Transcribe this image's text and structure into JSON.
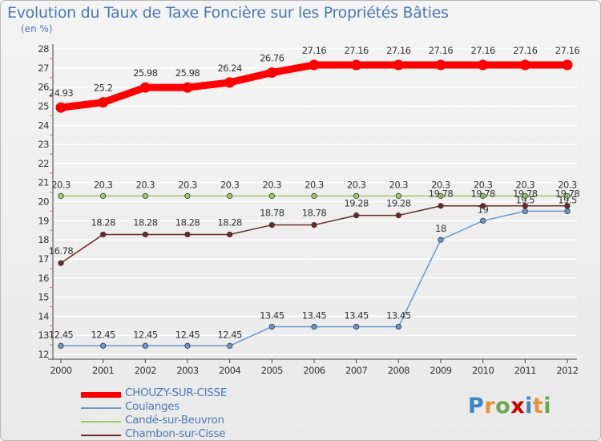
{
  "colors": {
    "primary": "#ff0000",
    "coulanges": "#6699cc",
    "cande": "#99cc66",
    "chambon": "#6b2a2a",
    "title": "#4a78b8"
  },
  "chart_data": {
    "type": "line",
    "title": "Evolution du Taux de Taxe Foncière sur les Propriétés Bâties",
    "ylabel": "(en %)",
    "xlabel": "",
    "ylim": [
      12,
      28
    ],
    "yticks": [
      12,
      13,
      14,
      15,
      16,
      17,
      18,
      19,
      20,
      21,
      22,
      23,
      24,
      25,
      26,
      27,
      28
    ],
    "x": [
      "2000",
      "2001",
      "2002",
      "2003",
      "2004",
      "2005",
      "2006",
      "2007",
      "2008",
      "2009",
      "2010",
      "2011",
      "2012"
    ],
    "series": [
      {
        "name": "CHOUZY-SUR-CISSE",
        "color": "#ff0000",
        "values": [
          24.93,
          25.2,
          25.98,
          25.98,
          26.24,
          26.76,
          27.16,
          27.16,
          27.16,
          27.16,
          27.16,
          27.16,
          27.16
        ]
      },
      {
        "name": "Coulanges",
        "color": "#6699cc",
        "values": [
          12.45,
          12.45,
          12.45,
          12.45,
          12.45,
          13.45,
          13.45,
          13.45,
          13.45,
          18,
          19,
          19.5,
          19.5
        ]
      },
      {
        "name": "Candé-sur-Beuvron",
        "color": "#99cc66",
        "values": [
          20.3,
          20.3,
          20.3,
          20.3,
          20.3,
          20.3,
          20.3,
          20.3,
          20.3,
          20.3,
          20.3,
          20.3,
          20.3
        ]
      },
      {
        "name": "Chambon-sur-Cisse",
        "color": "#6b2a2a",
        "values": [
          16.78,
          18.28,
          18.28,
          18.28,
          18.28,
          18.78,
          18.78,
          19.28,
          19.28,
          19.78,
          19.78,
          19.78,
          19.78
        ]
      }
    ],
    "legend_position": "bottom-left"
  },
  "logo": {
    "text": "Proxiti",
    "letters": [
      "P",
      "r",
      "o",
      "x",
      "i",
      "t",
      "i"
    ],
    "letter_colors": [
      "#3d85c6",
      "#e69138",
      "#6aa84f",
      "#cc0000",
      "#3d85c6",
      "#e69138",
      "#6aa84f"
    ]
  }
}
